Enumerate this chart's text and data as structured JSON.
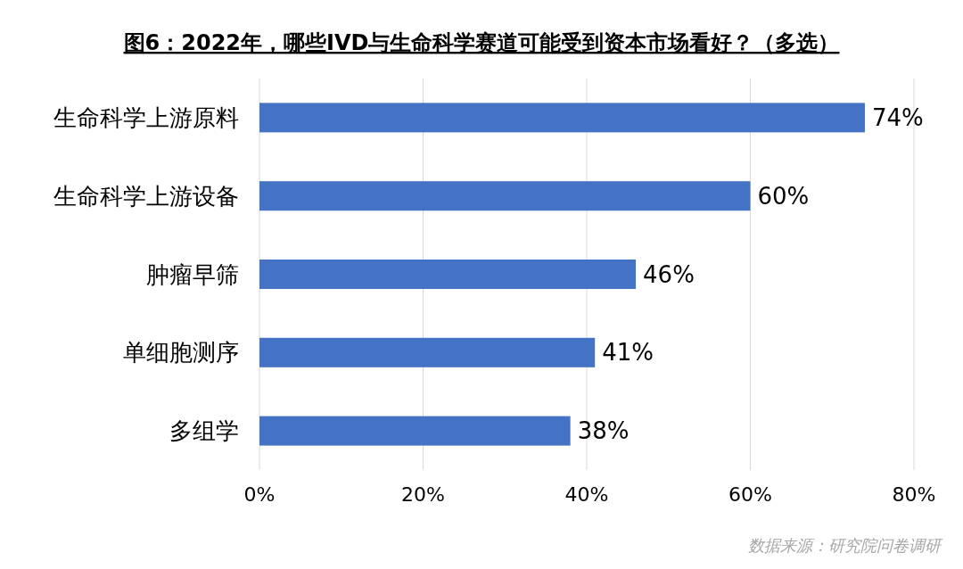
{
  "chart_data": {
    "type": "bar",
    "orientation": "horizontal",
    "title": "图6：2022年，哪些IVD与生命科学赛道可能受到资本市场看好？（多选）",
    "categories": [
      "生命科学上游原料",
      "生命科学上游设备",
      "肿瘤早筛",
      "单细胞测序",
      "多组学"
    ],
    "values": [
      74,
      60,
      46,
      41,
      38
    ],
    "value_labels": [
      "74%",
      "60%",
      "46%",
      "41%",
      "38%"
    ],
    "color": "#4472c4",
    "xlim": [
      0,
      80
    ],
    "xticks": [
      {
        "value": 0,
        "label": "0%"
      },
      {
        "value": 20,
        "label": "20%"
      },
      {
        "value": 40,
        "label": "40%"
      },
      {
        "value": 60,
        "label": "60%"
      },
      {
        "value": 80,
        "label": "80%"
      }
    ],
    "grid": "x",
    "annotations": [
      "数据来源：研究院问卷调研"
    ]
  }
}
